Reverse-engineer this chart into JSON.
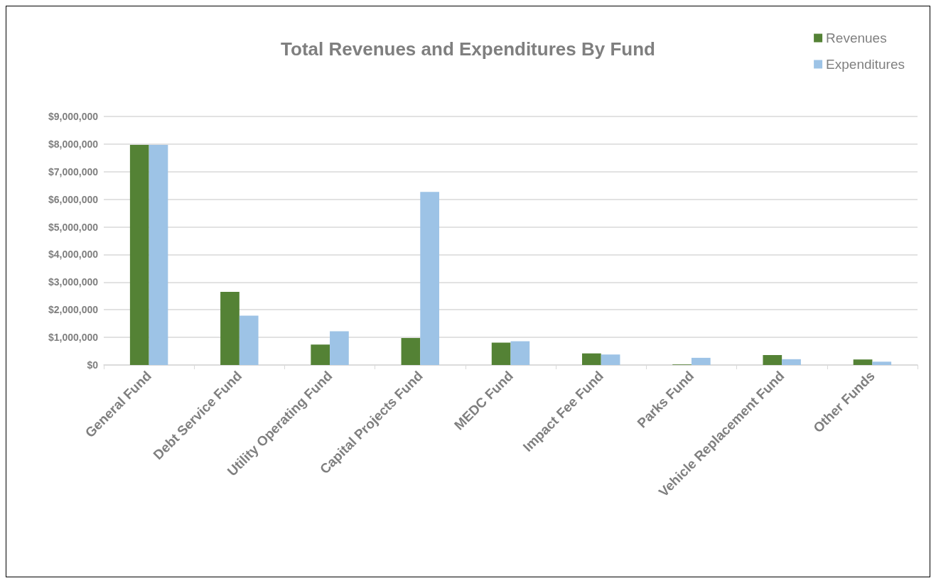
{
  "chart_data": {
    "type": "bar",
    "title": "Total Revenues and Expenditures By Fund",
    "categories": [
      "General Fund",
      "Debt Service Fund",
      "Utility Operating Fund",
      "Capital Projects Fund",
      "MEDC Fund",
      "Impact Fee Fund",
      "Parks Fund",
      "Vehicle Replacement Fund",
      "Other Funds"
    ],
    "series": [
      {
        "name": "Revenues",
        "color": "#548235",
        "values": [
          7970000,
          2650000,
          740000,
          980000,
          810000,
          420000,
          20000,
          360000,
          200000
        ]
      },
      {
        "name": "Expenditures",
        "color": "#9dc3e6",
        "values": [
          7970000,
          1790000,
          1220000,
          6270000,
          860000,
          380000,
          260000,
          210000,
          120000
        ]
      }
    ],
    "ylim": [
      0,
      9000000
    ],
    "yticks": [
      {
        "value": 0,
        "label": "$0"
      },
      {
        "value": 1000000,
        "label": "$1,000,000"
      },
      {
        "value": 2000000,
        "label": "$2,000,000"
      },
      {
        "value": 3000000,
        "label": "$3,000,000"
      },
      {
        "value": 4000000,
        "label": "$4,000,000"
      },
      {
        "value": 5000000,
        "label": "$5,000,000"
      },
      {
        "value": 6000000,
        "label": "$6,000,000"
      },
      {
        "value": 7000000,
        "label": "$7,000,000"
      },
      {
        "value": 8000000,
        "label": "$8,000,000"
      },
      {
        "value": 9000000,
        "label": "$9,000,000"
      }
    ],
    "grid": "y",
    "legend": "top right"
  }
}
